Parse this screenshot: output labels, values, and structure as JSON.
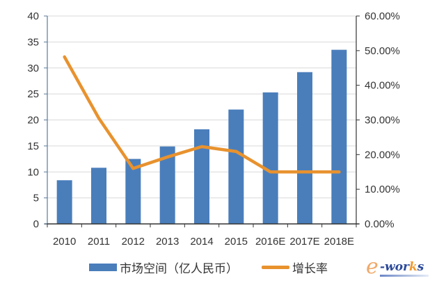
{
  "chart_data": {
    "type": "bar+line",
    "title": "",
    "categories": [
      "2010",
      "2011",
      "2012",
      "2013",
      "2014",
      "2015",
      "2016E",
      "2017E",
      "2018E"
    ],
    "series": [
      {
        "name": "市场空间（亿人民币）",
        "type": "bar",
        "axis": "left",
        "color": "#4a7ebb",
        "values": [
          8.4,
          10.8,
          12.5,
          14.9,
          18.2,
          22.0,
          25.3,
          29.2,
          33.5
        ]
      },
      {
        "name": "增长率",
        "type": "line",
        "axis": "right",
        "color": "#e8922e",
        "values": [
          48.2,
          30.5,
          16.0,
          19.3,
          22.3,
          20.9,
          15.0,
          15.0,
          15.0
        ],
        "unit": "%"
      }
    ],
    "left_axis": {
      "ylim": [
        0,
        40
      ],
      "ticks": [
        "0",
        "5",
        "10",
        "15",
        "20",
        "25",
        "30",
        "35",
        "40"
      ]
    },
    "right_axis": {
      "ylim": [
        0,
        60
      ],
      "ticks": [
        "0.00%",
        "10.00%",
        "20.00%",
        "30.00%",
        "40.00%",
        "50.00%",
        "60.00%"
      ]
    },
    "xlabel": "",
    "ylabel": "",
    "grid": true,
    "legend_position": "bottom"
  },
  "legend": {
    "bar_label": "市场空间（亿人民币）",
    "line_label": "增长率"
  },
  "watermark": {
    "e": "e",
    "text_main": "-wor",
    "text_k": "k",
    "text_end": "s"
  }
}
